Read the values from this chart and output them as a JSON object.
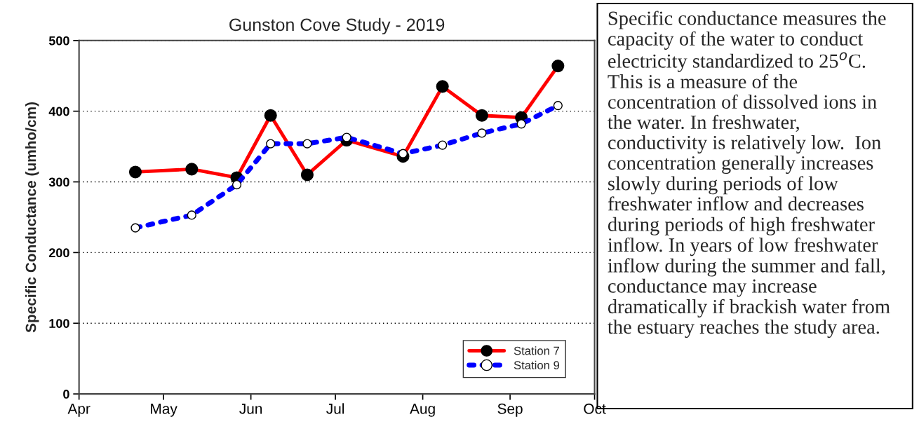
{
  "chart_data": {
    "type": "line",
    "title": "Gunston Cove Study - 2019",
    "ylabel": "Specific Conductance (umho/cm)",
    "x": [
      "2019-04-21",
      "2019-05-11",
      "2019-05-27",
      "2019-06-08",
      "2019-06-21",
      "2019-07-05",
      "2019-07-25",
      "2019-08-08",
      "2019-08-22",
      "2019-09-05",
      "2019-09-18"
    ],
    "series": [
      {
        "name": "Station 7",
        "color": "#ff0000",
        "line_style": "solid",
        "values": [
          314,
          318,
          306,
          394,
          310,
          359,
          336,
          435,
          394,
          391,
          464
        ]
      },
      {
        "name": "Station 9",
        "color": "#0000ff",
        "line_style": "dotted",
        "values": [
          235,
          253,
          296,
          354,
          354,
          363,
          340,
          352,
          369,
          382,
          408
        ]
      }
    ],
    "xlim": [
      "2019-04-01",
      "2019-10-01"
    ],
    "xticks": [
      {
        "value": "2019-04-01",
        "label": "Apr"
      },
      {
        "value": "2019-05-01",
        "label": "May"
      },
      {
        "value": "2019-06-01",
        "label": "Jun"
      },
      {
        "value": "2019-07-01",
        "label": "Jul"
      },
      {
        "value": "2019-08-01",
        "label": "Aug"
      },
      {
        "value": "2019-09-01",
        "label": "Sep"
      },
      {
        "value": "2019-10-01",
        "label": "Oct"
      }
    ],
    "ylim": [
      0,
      500
    ],
    "yticks": [
      0,
      100,
      200,
      300,
      400,
      500
    ],
    "grid": "y",
    "legend": "bottom right",
    "marker": "circle",
    "annotations": [
      "Specific conductance measures the\ncapacity of the water to conduct\nelectricity standardized to 25$^{o}$C.\nThis is a measure of the\nconcentration of dissolved ions in\nthe water. In freshwater,\nconductivity is relatively low.  Ion\nconcentration generally increases\nslowly during periods of low\nfreshwater inflow and decreases\nduring periods of high freshwater\ninflow. In years of low freshwater\ninflow during the summer and fall,\nconductance may increase\ndramatically if brackish water from\nthe estuary reaches the study area."
    ]
  }
}
